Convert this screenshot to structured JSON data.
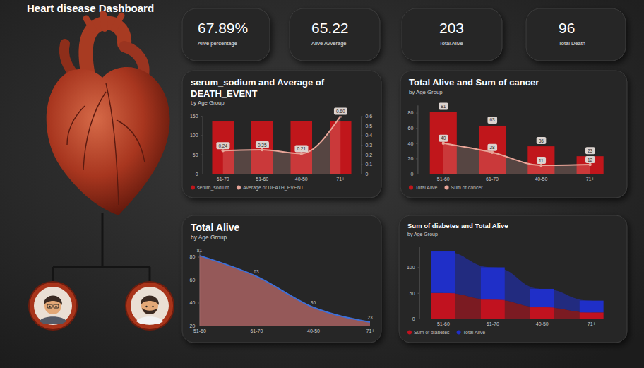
{
  "title": "Heart disease Dashboard",
  "kpis": [
    {
      "value": "67.89%",
      "label": "Alive percentage"
    },
    {
      "value": "65.22",
      "label": "Alive Avverage"
    },
    {
      "value": "203",
      "label": "Total Alive"
    },
    {
      "value": "96",
      "label": "Total Death"
    }
  ],
  "chart_data": [
    {
      "type": "bar",
      "title": "serum_sodium and Average of DEATH_EVENT",
      "subtitle": "by Age Group",
      "categories": [
        "61-70",
        "51-60",
        "40-50",
        "71+"
      ],
      "series": [
        {
          "name": "serum_sodium",
          "type": "bar",
          "color": "#c0161b",
          "values": [
            136,
            137,
            137,
            136
          ]
        },
        {
          "name": "Average of DEATH_EVENT",
          "type": "line",
          "axis": "y2",
          "color": "#e8a598",
          "marker": "circle",
          "data_labels": true,
          "values": [
            0.24,
            0.25,
            0.21,
            0.6
          ],
          "value_labels": [
            "0.24",
            "0.25",
            "0.21",
            "0.60"
          ]
        }
      ],
      "ylim": [
        0,
        150
      ],
      "yticks": [
        0,
        50,
        100,
        150
      ],
      "y2lim": [
        0,
        0.6
      ],
      "y2ticks": [
        0,
        0.1,
        0.2,
        0.3,
        0.4,
        0.5,
        0.6
      ],
      "grid": false,
      "legend": "bottom-left"
    },
    {
      "type": "bar",
      "title": "Total Alive and Sum of cancer",
      "subtitle": "by Age Group",
      "categories": [
        "51-60",
        "61-70",
        "40-50",
        "71+"
      ],
      "series": [
        {
          "name": "Total Alive",
          "type": "bar",
          "color": "#c0161b",
          "data_labels": true,
          "values": [
            81,
            63,
            36,
            23
          ]
        },
        {
          "name": "Sum of cancer",
          "type": "line",
          "color": "#e8a598",
          "marker": "circle",
          "data_labels": true,
          "values": [
            40,
            28,
            11,
            12
          ]
        }
      ],
      "ylim": [
        0,
        90
      ],
      "yticks": [
        0,
        20,
        40,
        60,
        80
      ],
      "grid": false,
      "legend": "bottom-left"
    },
    {
      "type": "area",
      "title": "Total Alive",
      "subtitle": "by Age Group",
      "categories": [
        "51-60",
        "61-70",
        "40-50",
        "71+"
      ],
      "series": [
        {
          "name": "Total Alive",
          "color": "#3d6fd8",
          "data_labels": true,
          "values": [
            81,
            63,
            36,
            23
          ]
        }
      ],
      "ylim": [
        20,
        85
      ],
      "yticks": [
        20,
        40,
        60,
        80
      ],
      "grid": false
    },
    {
      "type": "ribbon",
      "title": "Sum of diabetes and Total Alive",
      "subtitle": "by Age Group",
      "categories": [
        "51-60",
        "61-70",
        "40-50",
        "71+"
      ],
      "series": [
        {
          "name": "Sum of diabetes",
          "color": "#c1121f",
          "values": [
            50,
            37,
            22,
            12
          ]
        },
        {
          "name": "Total Alive",
          "color": "#1f2fc8",
          "values": [
            81,
            63,
            36,
            23
          ]
        }
      ],
      "ylim": [
        0,
        140
      ],
      "yticks": [
        0,
        50,
        100
      ],
      "stacked": true,
      "grid": false,
      "legend": "bottom-left"
    }
  ]
}
